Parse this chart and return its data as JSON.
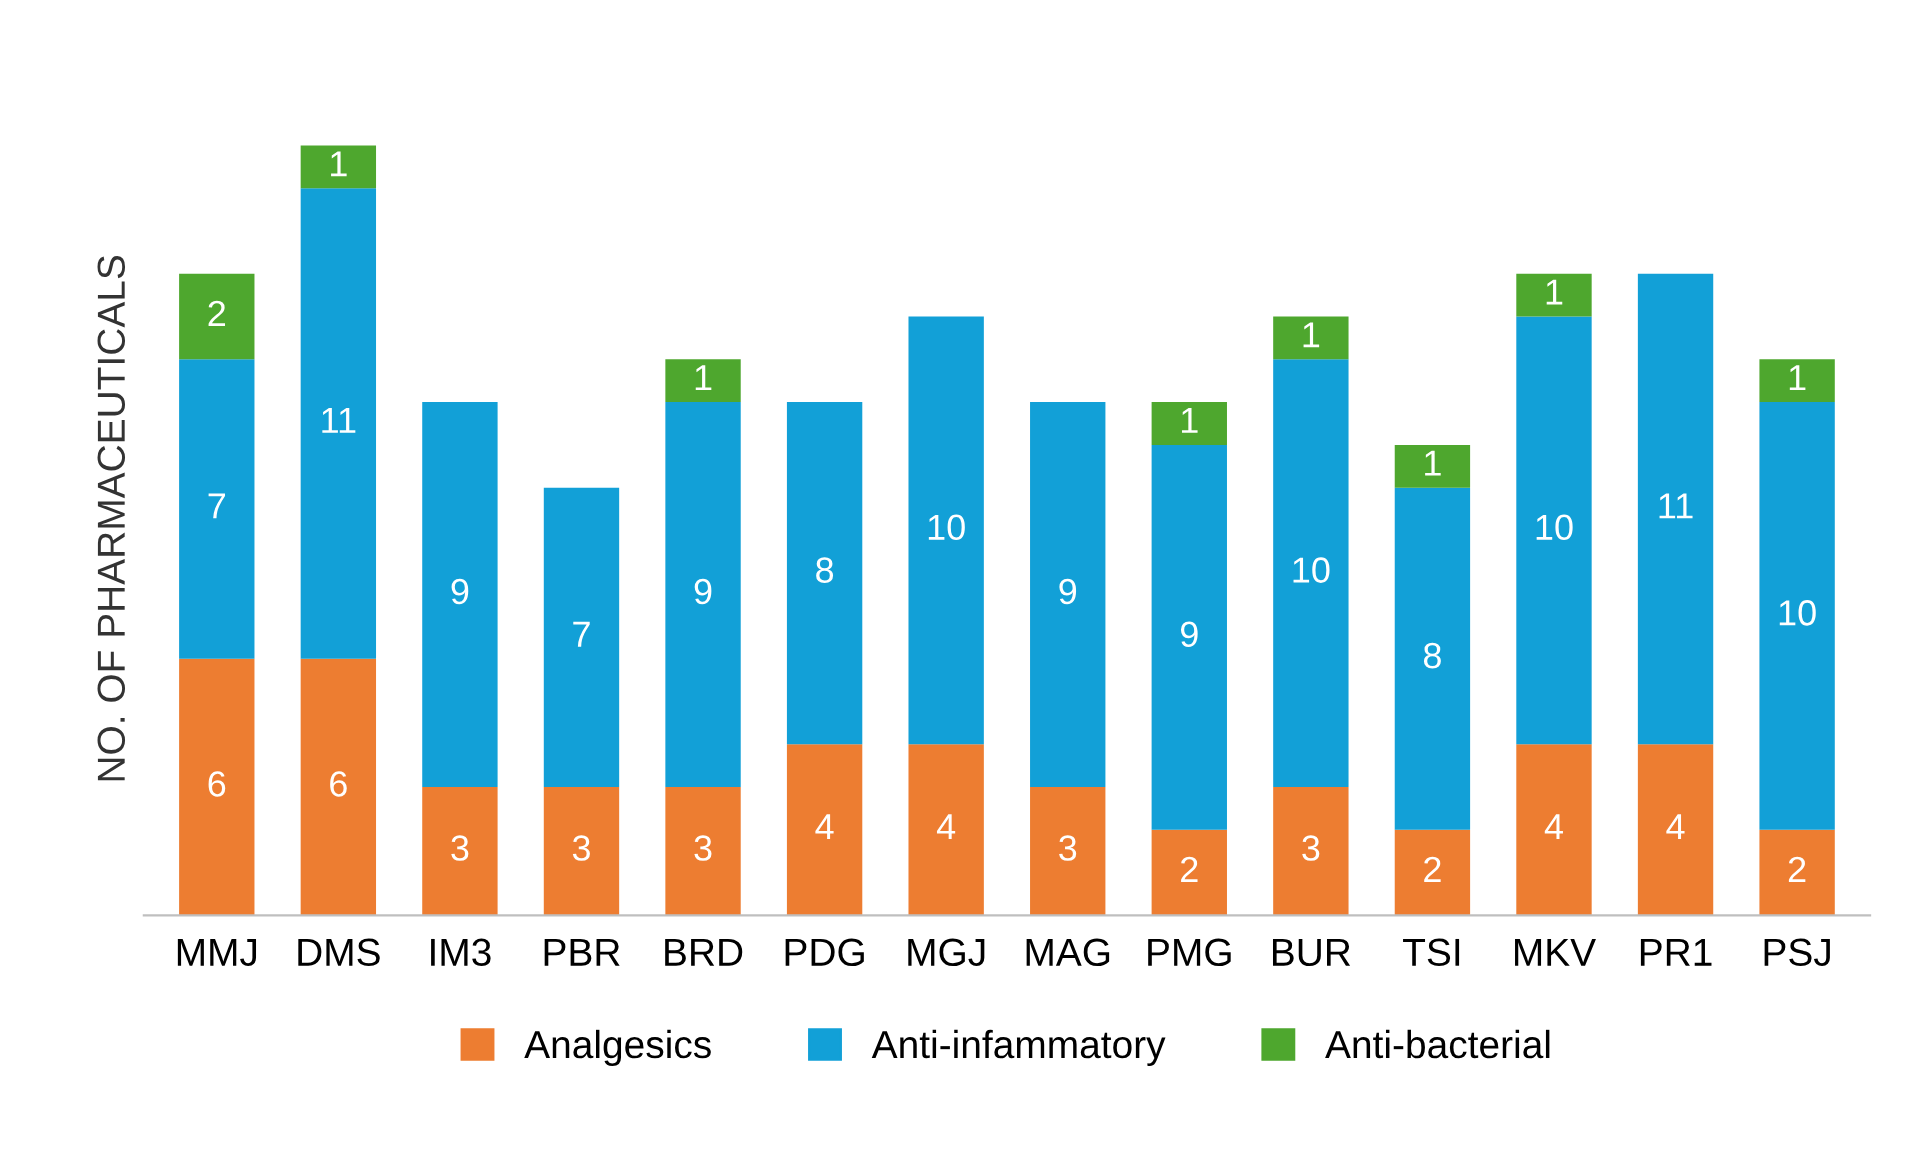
{
  "chart_data": {
    "type": "bar",
    "stacked": true,
    "ylabel": "NO. OF PHARMACEUTICALS",
    "categories": [
      "MMJ",
      "DMS",
      "IM3",
      "PBR",
      "BRD",
      "PDG",
      "MGJ",
      "MAG",
      "PMG",
      "BUR",
      "TSI",
      "MKV",
      "PR1",
      "PSJ"
    ],
    "series": [
      {
        "name": "Analgesics",
        "color": "#ed7d31",
        "values": [
          6,
          6,
          3,
          3,
          3,
          4,
          4,
          3,
          2,
          3,
          2,
          4,
          4,
          2
        ]
      },
      {
        "name": "Anti-infammatory",
        "color": "#12a0d7",
        "values": [
          7,
          11,
          9,
          7,
          9,
          8,
          10,
          9,
          9,
          10,
          8,
          10,
          11,
          10
        ]
      },
      {
        "name": "Anti-bacterial",
        "color": "#4ea72e",
        "values": [
          2,
          1,
          null,
          null,
          1,
          null,
          null,
          null,
          1,
          1,
          1,
          1,
          null,
          1
        ]
      }
    ],
    "data_labels": true,
    "legend": "bottom",
    "grid": false,
    "tick_labels": "x"
  }
}
